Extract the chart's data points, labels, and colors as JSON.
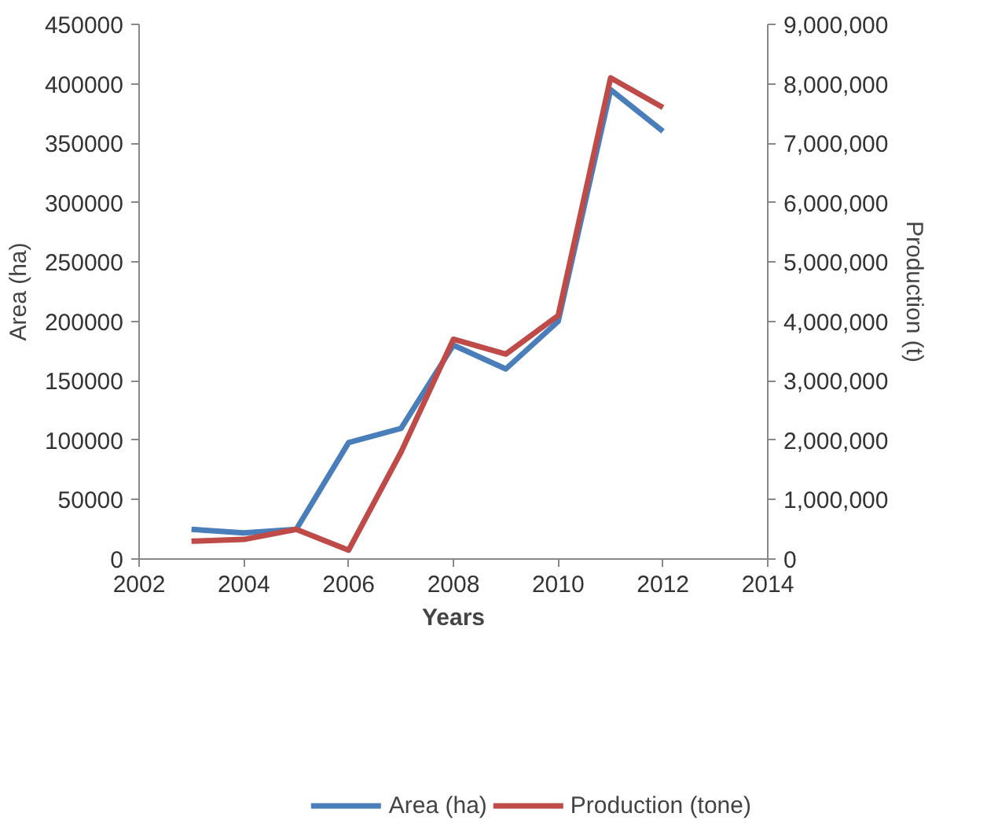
{
  "chart_data": {
    "type": "line",
    "xlabel": "Years",
    "ylabel": "Area (ha)",
    "y2label": "Production (t)",
    "x": [
      2003,
      2004,
      2005,
      2006,
      2007,
      2008,
      2009,
      2010,
      2011,
      2012
    ],
    "series": [
      {
        "name": "Area (ha)",
        "color": "#4a7ebb",
        "values": [
          25000,
          22000,
          25000,
          98000,
          110000,
          180000,
          160000,
          200000,
          395000,
          360000
        ]
      },
      {
        "name": "Production (tone)",
        "color": "#be4b48",
        "axis": "y2",
        "values": [
          300000,
          330000,
          500000,
          150000,
          1800000,
          3700000,
          3450000,
          4100000,
          8100000,
          7600000
        ]
      }
    ],
    "xlim": [
      2002,
      2014
    ],
    "xticks": [
      2002,
      2004,
      2006,
      2008,
      2010,
      2012,
      2014
    ],
    "ylim": [
      0,
      450000
    ],
    "yticks": [
      0,
      50000,
      100000,
      150000,
      200000,
      250000,
      300000,
      350000,
      400000,
      450000
    ],
    "y2lim": [
      0,
      9000000
    ],
    "y2ticks": [
      {
        "value": 0,
        "label": "0"
      },
      {
        "value": 1000000,
        "label": "1,000,000"
      },
      {
        "value": 2000000,
        "label": "2,000,000"
      },
      {
        "value": 3000000,
        "label": "3,000,000"
      },
      {
        "value": 4000000,
        "label": "4,000,000"
      },
      {
        "value": 5000000,
        "label": "5,000,000"
      },
      {
        "value": 6000000,
        "label": "6,000,000"
      },
      {
        "value": 7000000,
        "label": "7,000,000"
      },
      {
        "value": 8000000,
        "label": "8,000,000"
      },
      {
        "value": 9000000,
        "label": "9,000,000"
      }
    ],
    "grid": false,
    "legend": "bottom",
    "marker": "none",
    "line_style": "solid"
  }
}
